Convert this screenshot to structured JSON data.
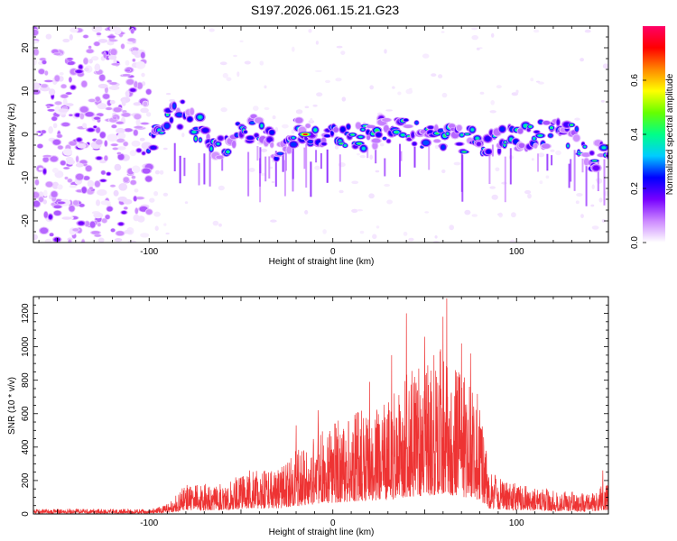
{
  "figure_title": "S197.2026.061.15.21.G23",
  "chart_data": [
    {
      "type": "heatmap",
      "title": "S197.2026.061.15.21.G23",
      "xlabel": "Height of straight line (km)",
      "ylabel": "Frequency (Hz)",
      "xlim": [
        -163,
        150
      ],
      "ylim": [
        -25,
        25
      ],
      "x_ticks": [
        -100,
        0,
        100
      ],
      "x_tick_labels": [
        "-100",
        "0",
        "100"
      ],
      "y_ticks": [
        -20,
        -10,
        0,
        10,
        20
      ],
      "y_tick_labels": [
        "-20",
        "-10",
        "0",
        "10",
        "20"
      ],
      "colorbar": {
        "label": "Normalized spectral amplitude",
        "range": [
          0,
          0.8
        ],
        "ticks": [
          0.0,
          0.2,
          0.4,
          0.6
        ],
        "tick_labels": [
          "0.0",
          "0.2",
          "0.4",
          "0.6"
        ],
        "colors": [
          "#ffffff",
          "#cc88ff",
          "#7700ff",
          "#0000ff",
          "#00ccff",
          "#00ff88",
          "#66ff00",
          "#ffff00",
          "#ff8800",
          "#ff0000",
          "#ff0066"
        ]
      },
      "noise_region": {
        "x_from": -163,
        "x_to": -100,
        "amplitude": 0.25
      },
      "ridge": [
        {
          "x": -100,
          "y": -2
        },
        {
          "x": -90,
          "y": 3
        },
        {
          "x": -80,
          "y": 5
        },
        {
          "x": -70,
          "y": 0
        },
        {
          "x": -60,
          "y": -4
        },
        {
          "x": -50,
          "y": 1
        },
        {
          "x": -40,
          "y": 2
        },
        {
          "x": -30,
          "y": -3
        },
        {
          "x": -20,
          "y": 1
        },
        {
          "x": -15,
          "y": 0
        },
        {
          "x": -5,
          "y": 0
        },
        {
          "x": 10,
          "y": -1
        },
        {
          "x": 30,
          "y": 1
        },
        {
          "x": 50,
          "y": 0
        },
        {
          "x": 70,
          "y": -1
        },
        {
          "x": 90,
          "y": -2
        },
        {
          "x": 110,
          "y": 0
        },
        {
          "x": 130,
          "y": 0
        },
        {
          "x": 140,
          "y": -6
        },
        {
          "x": 150,
          "y": -3
        }
      ],
      "peak": {
        "x": -15,
        "y": 0,
        "amplitude": 0.8
      }
    },
    {
      "type": "line",
      "xlabel": "Height of straight line (km)",
      "ylabel": "SNR (10 * v/v)",
      "xlim": [
        -163,
        150
      ],
      "ylim": [
        0,
        1300
      ],
      "x_ticks": [
        -100,
        0,
        100
      ],
      "x_tick_labels": [
        "-100",
        "0",
        "100"
      ],
      "y_ticks": [
        0,
        200,
        400,
        600,
        800,
        1000,
        1200
      ],
      "y_tick_labels": [
        "0",
        "200",
        "400",
        "600",
        "800",
        "1000",
        "1200"
      ],
      "color": "#ee3333",
      "envelope": [
        {
          "x": -163,
          "y": 30
        },
        {
          "x": -100,
          "y": 30
        },
        {
          "x": -90,
          "y": 60
        },
        {
          "x": -80,
          "y": 180
        },
        {
          "x": -60,
          "y": 180
        },
        {
          "x": -45,
          "y": 270
        },
        {
          "x": -30,
          "y": 260
        },
        {
          "x": -20,
          "y": 380
        },
        {
          "x": -10,
          "y": 470
        },
        {
          "x": 0,
          "y": 560
        },
        {
          "x": 10,
          "y": 600
        },
        {
          "x": 20,
          "y": 650
        },
        {
          "x": 30,
          "y": 700
        },
        {
          "x": 40,
          "y": 850
        },
        {
          "x": 50,
          "y": 900
        },
        {
          "x": 60,
          "y": 1000
        },
        {
          "x": 70,
          "y": 850
        },
        {
          "x": 80,
          "y": 700
        },
        {
          "x": 85,
          "y": 250
        },
        {
          "x": 100,
          "y": 180
        },
        {
          "x": 120,
          "y": 150
        },
        {
          "x": 140,
          "y": 120
        },
        {
          "x": 150,
          "y": 200
        }
      ],
      "peaks": [
        {
          "x": -20,
          "y": 530
        },
        {
          "x": -8,
          "y": 620
        },
        {
          "x": 20,
          "y": 790
        },
        {
          "x": 32,
          "y": 950
        },
        {
          "x": 40,
          "y": 1200
        },
        {
          "x": 50,
          "y": 1060
        },
        {
          "x": 55,
          "y": 950
        },
        {
          "x": 60,
          "y": 1180
        },
        {
          "x": 62,
          "y": 1290
        },
        {
          "x": 70,
          "y": 1020
        },
        {
          "x": 75,
          "y": 960
        },
        {
          "x": 80,
          "y": 620
        },
        {
          "x": 147,
          "y": 260
        }
      ]
    }
  ]
}
